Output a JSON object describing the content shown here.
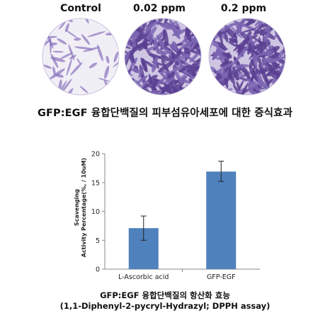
{
  "micrographs": [
    {
      "label": "Control",
      "density": "sparse"
    },
    {
      "label": "0.02 ppm",
      "density": "dense"
    },
    {
      "label": "0.2 ppm",
      "density": "dense"
    }
  ],
  "figure_caption": "GFP:EGF 융합단백질의 피부섬유아세포에 대한 증식효과",
  "chart_caption": {
    "line1": "GFP:EGF 융합단백질의 항산화 효능",
    "line2": "(1,1-Diphenyl-2-pycryl-Hydrazyl; DPPH assay)"
  },
  "colors": {
    "bar": "#4f81bd",
    "cells": "#6b4fa0",
    "dish_bg": "#e9e6f2"
  },
  "chart_data": {
    "type": "bar",
    "categories": [
      "L-Ascorbic acid",
      "GFP-EGF"
    ],
    "values": [
      7.1,
      16.9
    ],
    "error_low": [
      5.0,
      15.2
    ],
    "error_high": [
      9.2,
      18.7
    ],
    "ylabel_line1": "Scavenging",
    "ylabel_line2": "Activity Percentage(%, / 10uM)",
    "ylim": [
      0,
      20
    ],
    "yticks": [
      0,
      5,
      10,
      15,
      20
    ],
    "grid": false
  }
}
